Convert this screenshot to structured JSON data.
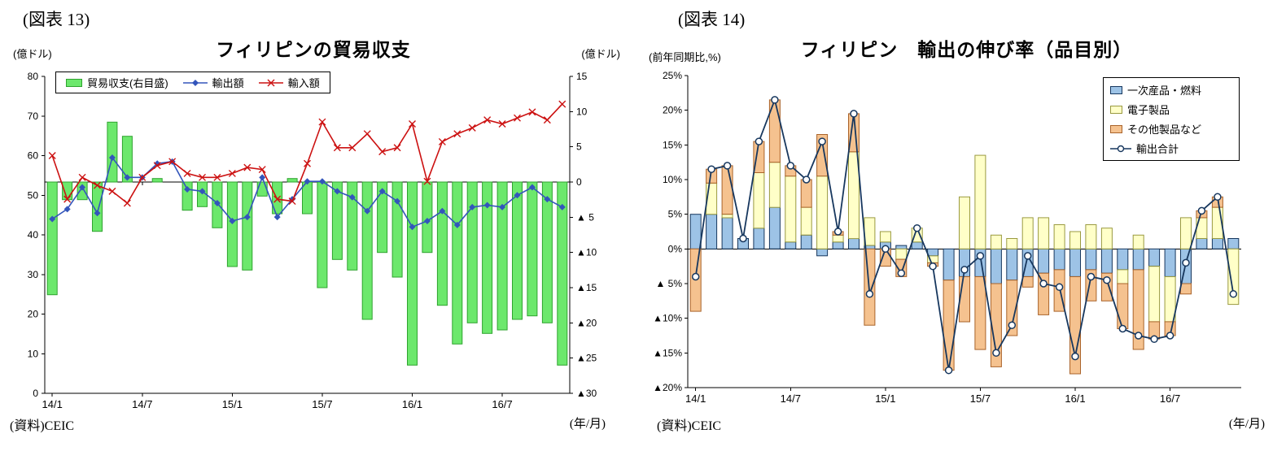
{
  "figure13": {
    "label": "(図表 13)",
    "title": "フィリピンの貿易収支",
    "unit_left": "(億ドル)",
    "unit_right": "(億ドル)",
    "source": "(資料)CEIC",
    "x_unit": "(年/月)"
  },
  "figure14": {
    "label": "(図表 14)",
    "title": "フィリピン　輸出の伸び率（品目別）",
    "unit": "(前年同期比,%)",
    "source": "(資料)CEIC",
    "x_unit": "(年/月)"
  },
  "chart_data": [
    {
      "type": "bar+line",
      "title": "フィリピンの貿易収支",
      "x": [
        "14/1",
        "14/2",
        "14/3",
        "14/4",
        "14/5",
        "14/6",
        "14/7",
        "14/8",
        "14/9",
        "14/10",
        "14/11",
        "14/12",
        "15/1",
        "15/2",
        "15/3",
        "15/4",
        "15/5",
        "15/6",
        "15/7",
        "15/8",
        "15/9",
        "15/10",
        "15/11",
        "15/12",
        "16/1",
        "16/2",
        "16/3",
        "16/4",
        "16/5",
        "16/6",
        "16/7",
        "16/8",
        "16/9",
        "16/10",
        "16/11"
      ],
      "x_ticks": {
        "indices": [
          0,
          6,
          12,
          18,
          24,
          30
        ],
        "labels": [
          "14/1",
          "14/7",
          "15/1",
          "15/7",
          "16/1",
          "16/7"
        ]
      },
      "y_left": {
        "label": "(億ドル)",
        "min": 0,
        "max": 80,
        "tick_values": [
          0,
          10,
          20,
          30,
          40,
          50,
          60,
          70,
          80
        ],
        "tick_labels": [
          "0",
          "10",
          "20",
          "30",
          "40",
          "50",
          "60",
          "70",
          "80"
        ]
      },
      "y_right": {
        "label": "(億ドル)",
        "min": -30,
        "max": 15,
        "tick_values": [
          -30,
          -25,
          -20,
          -15,
          -10,
          -5,
          0,
          5,
          10,
          15
        ],
        "tick_labels": [
          "▲30",
          "▲25",
          "▲20",
          "▲15",
          "▲10",
          "▲ 5",
          "0",
          "5",
          "10",
          "15"
        ]
      },
      "series": [
        {
          "name": "貿易収支(右目盛)",
          "type": "bar",
          "axis": "right",
          "marker": "none",
          "color": "#6CE86C",
          "border": "#2FA32F",
          "values": [
            -16,
            -2.5,
            -2.5,
            -7,
            8.5,
            6.5,
            0,
            0.5,
            0,
            -4,
            -3.5,
            -6.5,
            -12,
            -12.5,
            -2,
            -4.5,
            0.5,
            -4.5,
            -15,
            -11,
            -12.5,
            -19.5,
            -10,
            -13.5,
            -26,
            -10,
            -17.5,
            -23,
            -20,
            -21.5,
            -21,
            -19.5,
            -19,
            -20,
            -26
          ]
        },
        {
          "name": "輸出額",
          "type": "line",
          "axis": "left",
          "marker": "diamond",
          "color": "#3355BB",
          "values": [
            44,
            46.5,
            52,
            45.5,
            59.5,
            54.5,
            54.5,
            58,
            58.5,
            51.5,
            51,
            48,
            43.5,
            44.5,
            54.5,
            44.5,
            49,
            53.5,
            53.5,
            51,
            49.5,
            46,
            51,
            48.5,
            42,
            43.5,
            46,
            42.5,
            47,
            47.5,
            47,
            50,
            52,
            49,
            47
          ]
        },
        {
          "name": "輸入額",
          "type": "line",
          "axis": "left",
          "marker": "x",
          "color": "#CC1111",
          "values": [
            60,
            49,
            54.5,
            52.5,
            51,
            48,
            54.5,
            57.5,
            58.5,
            55.5,
            54.5,
            54.5,
            55.5,
            57,
            56.5,
            49,
            48.5,
            58,
            68.5,
            62,
            62,
            65.5,
            61,
            62,
            68,
            53.5,
            63.5,
            65.5,
            67,
            69,
            68,
            69.5,
            71,
            69,
            73
          ]
        }
      ]
    },
    {
      "type": "stacked-bar+line",
      "title": "フィリピン　輸出の伸び率（品目別）",
      "x": [
        "14/1",
        "14/2",
        "14/3",
        "14/4",
        "14/5",
        "14/6",
        "14/7",
        "14/8",
        "14/9",
        "14/10",
        "14/11",
        "14/12",
        "15/1",
        "15/2",
        "15/3",
        "15/4",
        "15/5",
        "15/6",
        "15/7",
        "15/8",
        "15/9",
        "15/10",
        "15/11",
        "15/12",
        "16/1",
        "16/2",
        "16/3",
        "16/4",
        "16/5",
        "16/6",
        "16/7",
        "16/8",
        "16/9",
        "16/10",
        "16/11"
      ],
      "x_ticks": {
        "indices": [
          0,
          6,
          12,
          18,
          24,
          30
        ],
        "labels": [
          "14/1",
          "14/7",
          "15/1",
          "15/7",
          "16/1",
          "16/7"
        ]
      },
      "y": {
        "label": "(前年同期比,%)",
        "min": -20,
        "max": 25,
        "tick_values": [
          -20,
          -15,
          -10,
          -5,
          0,
          5,
          10,
          15,
          20,
          25
        ],
        "tick_labels": [
          "▲20%",
          "▲15%",
          "▲10%",
          "▲ 5%",
          "0%",
          "5%",
          "10%",
          "15%",
          "20%",
          "25%"
        ]
      },
      "series": [
        {
          "name": "一次産品・燃料",
          "type": "bar",
          "color": "#9DC3E6",
          "border": "#17375E",
          "values": [
            5,
            5,
            4.5,
            1.5,
            3,
            6,
            1,
            2,
            -1,
            1,
            1.5,
            0.5,
            1,
            0.5,
            1,
            -1,
            -4.5,
            -4,
            -4,
            -5,
            -4.5,
            -4,
            -3.5,
            -3,
            -4,
            -3,
            -3.5,
            -3,
            -3,
            -2.5,
            -4,
            -5,
            1.5,
            1.5,
            1.5
          ]
        },
        {
          "name": "電子製品",
          "type": "bar",
          "color": "#FFFFC8",
          "border": "#9A9A40",
          "values": [
            0,
            4.5,
            0.5,
            0,
            8,
            6.5,
            9.5,
            4,
            10.5,
            1,
            12.5,
            4,
            1.5,
            -1.5,
            2,
            -1,
            0,
            7.5,
            13.5,
            2,
            1.5,
            4.5,
            4.5,
            3.5,
            2.5,
            3.5,
            3,
            -2,
            2,
            -8,
            -6.5,
            4.5,
            3,
            4.5,
            -8
          ]
        },
        {
          "name": "その他製品など",
          "type": "bar",
          "color": "#F5C28F",
          "border": "#A9632A",
          "values": [
            -9,
            2,
            7,
            0,
            4.5,
            9,
            1.5,
            4,
            6,
            0.5,
            5.5,
            -11,
            -2.5,
            -2.5,
            0,
            -0.5,
            -13,
            -6.5,
            -10.5,
            -12,
            -8,
            -1.5,
            -6,
            -6,
            -14,
            -4.5,
            -4,
            -6.5,
            -11.5,
            -2.5,
            -2,
            -1.5,
            1,
            1.5,
            0
          ]
        },
        {
          "name": "輸出合計",
          "type": "line",
          "marker": "circle",
          "color": "#17375E",
          "values": [
            -4,
            11.5,
            12,
            1.5,
            15.5,
            21.5,
            12,
            10,
            15.5,
            2.5,
            19.5,
            -6.5,
            0,
            -3.5,
            3,
            -2.5,
            -17.5,
            -3,
            -1,
            -15,
            -11,
            -1,
            -5,
            -5.5,
            -15.5,
            -4,
            -4.5,
            -11.5,
            -12.5,
            -13,
            -12.5,
            -2,
            5.5,
            7.5,
            -6.5
          ]
        }
      ]
    }
  ]
}
